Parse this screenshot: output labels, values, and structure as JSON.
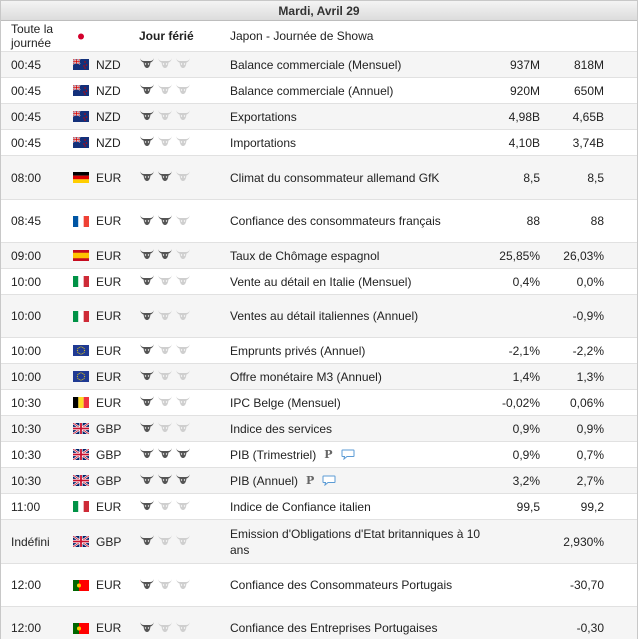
{
  "day_header": "Mardi, Avril 29",
  "rows": [
    {
      "time": "Toute la journée",
      "flag": "jp",
      "currency": "",
      "importance": "Jour férié",
      "event": "Japon - Journée de Showa",
      "actual": "",
      "forecast": "",
      "h": 31
    },
    {
      "time": "00:45",
      "flag": "nz",
      "currency": "NZD",
      "importance": 1,
      "event": "Balance commerciale (Mensuel)",
      "actual": "937M",
      "forecast": "818M",
      "h": 26
    },
    {
      "time": "00:45",
      "flag": "nz",
      "currency": "NZD",
      "importance": 1,
      "event": "Balance commerciale (Annuel)",
      "actual": "920M",
      "forecast": "650M",
      "h": 26
    },
    {
      "time": "00:45",
      "flag": "nz",
      "currency": "NZD",
      "importance": 1,
      "event": "Exportations",
      "actual": "4,98B",
      "forecast": "4,65B",
      "h": 26
    },
    {
      "time": "00:45",
      "flag": "nz",
      "currency": "NZD",
      "importance": 1,
      "event": "Importations",
      "actual": "4,10B",
      "forecast": "3,74B",
      "h": 26
    },
    {
      "time": "08:00",
      "flag": "de",
      "currency": "EUR",
      "importance": 2,
      "event": "Climat du consommateur allemand GfK",
      "actual": "8,5",
      "forecast": "8,5",
      "h": 44
    },
    {
      "time": "08:45",
      "flag": "fr",
      "currency": "EUR",
      "importance": 2,
      "event": "Confiance des consommateurs français",
      "actual": "88",
      "forecast": "88",
      "h": 43
    },
    {
      "time": "09:00",
      "flag": "es",
      "currency": "EUR",
      "importance": 2,
      "event": "Taux de Chômage espagnol",
      "actual": "25,85%",
      "forecast": "26,03%",
      "h": 26
    },
    {
      "time": "10:00",
      "flag": "it",
      "currency": "EUR",
      "importance": 1,
      "event": "Vente au détail en Italie (Mensuel)",
      "actual": "0,4%",
      "forecast": "0,0%",
      "h": 26
    },
    {
      "time": "10:00",
      "flag": "it",
      "currency": "EUR",
      "importance": 1,
      "event": "Ventes au détail italiennes (Annuel)",
      "actual": "",
      "forecast": "-0,9%",
      "h": 43
    },
    {
      "time": "10:00",
      "flag": "eu",
      "currency": "EUR",
      "importance": 1,
      "event": "Emprunts privés (Annuel)",
      "actual": "-2,1%",
      "forecast": "-2,2%",
      "h": 26
    },
    {
      "time": "10:00",
      "flag": "eu",
      "currency": "EUR",
      "importance": 1,
      "event": "Offre monétaire M3 (Annuel)",
      "actual": "1,4%",
      "forecast": "1,3%",
      "h": 26
    },
    {
      "time": "10:30",
      "flag": "be",
      "currency": "EUR",
      "importance": 1,
      "event": "IPC Belge (Mensuel)",
      "actual": "-0,02%",
      "forecast": "0,06%",
      "h": 26
    },
    {
      "time": "10:30",
      "flag": "gb",
      "currency": "GBP",
      "importance": 1,
      "event": "Indice des services",
      "actual": "0,9%",
      "forecast": "0,9%",
      "h": 26
    },
    {
      "time": "10:30",
      "flag": "gb",
      "currency": "GBP",
      "importance": 3,
      "event": "PIB (Trimestriel)",
      "actual": "0,9%",
      "forecast": "0,7%",
      "h": 26,
      "icons": true
    },
    {
      "time": "10:30",
      "flag": "gb",
      "currency": "GBP",
      "importance": 3,
      "event": "PIB (Annuel)",
      "actual": "3,2%",
      "forecast": "2,7%",
      "h": 26,
      "icons": true
    },
    {
      "time": "11:00",
      "flag": "it",
      "currency": "EUR",
      "importance": 1,
      "event": "Indice de Confiance italien",
      "actual": "99,5",
      "forecast": "99,2",
      "h": 26
    },
    {
      "time": "Indéfini",
      "flag": "gb",
      "currency": "GBP",
      "importance": 1,
      "event": "Emission d'Obligations d'Etat britanniques à 10 ans",
      "actual": "",
      "forecast": "2,930%",
      "h": 44
    },
    {
      "time": "12:00",
      "flag": "pt",
      "currency": "EUR",
      "importance": 1,
      "event": "Confiance des Consommateurs Portugais",
      "actual": "",
      "forecast": "-30,70",
      "h": 43
    },
    {
      "time": "12:00",
      "flag": "pt",
      "currency": "EUR",
      "importance": 1,
      "event": "Confiance des Entreprises Portugaises",
      "actual": "",
      "forecast": "-0,30",
      "h": 43
    }
  ],
  "icon_labels": {
    "prelim": "P",
    "comment": "comment-bubble-icon"
  },
  "colors": {
    "bull_on": "#555555",
    "bull_off": "#cfcfcf",
    "row_alt": "#f5f5f5"
  }
}
